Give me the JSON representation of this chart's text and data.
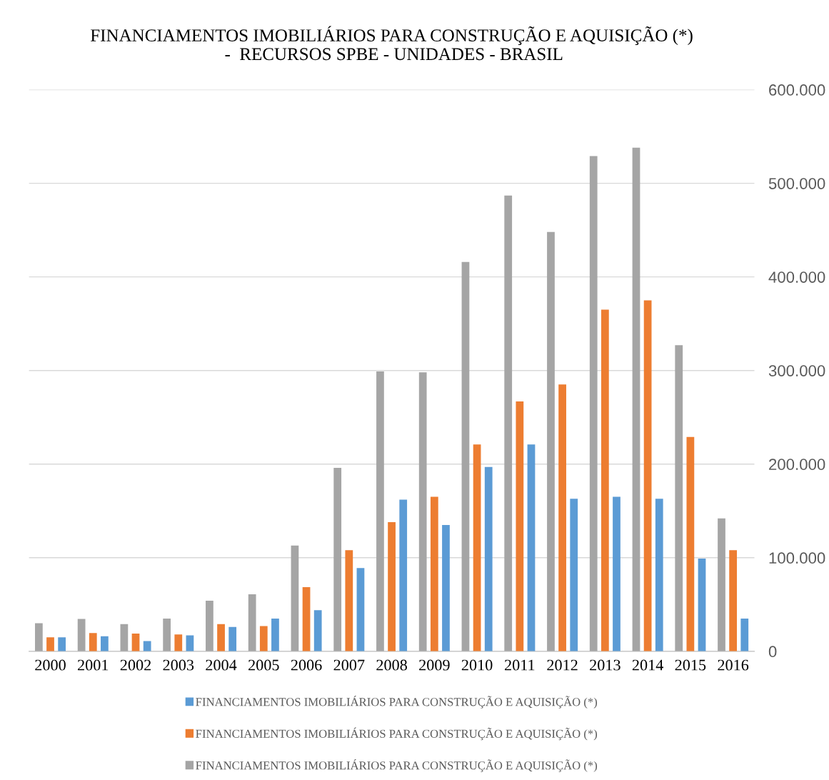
{
  "chart_data": {
    "type": "bar",
    "title": "FINANCIAMENTOS IMOBILIÁRIOS PARA CONSTRUÇÃO E AQUISIÇÃO (*)\n -  RECURSOS SPBE - UNIDADES - BRASIL",
    "categories": [
      "2000",
      "2001",
      "2002",
      "2003",
      "2004",
      "2005",
      "2006",
      "2007",
      "2008",
      "2009",
      "2010",
      "2011",
      "2012",
      "2013",
      "2014",
      "2015",
      "2016"
    ],
    "series": [
      {
        "name": "FINANCIAMENTOS IMOBILIÁRIOS PARA CONSTRUÇÃO E AQUISIÇÃO (*)",
        "color": "#a5a5a5",
        "values": [
          30000,
          34600,
          29000,
          35000,
          54000,
          61000,
          113000,
          196000,
          299000,
          298000,
          416000,
          487000,
          448000,
          529000,
          538000,
          327000,
          142000
        ]
      },
      {
        "name": "FINANCIAMENTOS IMOBILIÁRIOS PARA CONSTRUÇÃO E AQUISIÇÃO (*)",
        "color": "#ed7d31",
        "values": [
          15000,
          19600,
          19000,
          18000,
          29000,
          27000,
          68500,
          108000,
          138000,
          165000,
          221000,
          267000,
          285000,
          365000,
          375000,
          229000,
          108000
        ]
      },
      {
        "name": "FINANCIAMENTOS IMOBILIÁRIOS PARA CONSTRUÇÃO E AQUISIÇÃO (*)",
        "color": "#5b9bd5",
        "values": [
          15000,
          16000,
          11000,
          17000,
          26000,
          35000,
          44000,
          89000,
          162000,
          135000,
          197000,
          221000,
          163000,
          165000,
          163000,
          99000,
          35000
        ]
      }
    ],
    "ylim": [
      0,
      600000
    ],
    "yticks": [
      0,
      {
        "value": 100000,
        "label": "100.000"
      },
      {
        "value": 200000,
        "label": "200.000"
      },
      {
        "value": 300000,
        "label": "300.000"
      },
      {
        "value": 400000,
        "label": "400.000"
      },
      {
        "value": 500000,
        "label": "500.000"
      },
      {
        "value": 600000,
        "label": "600.000"
      }
    ],
    "grid": "y",
    "legend": "bottom"
  }
}
